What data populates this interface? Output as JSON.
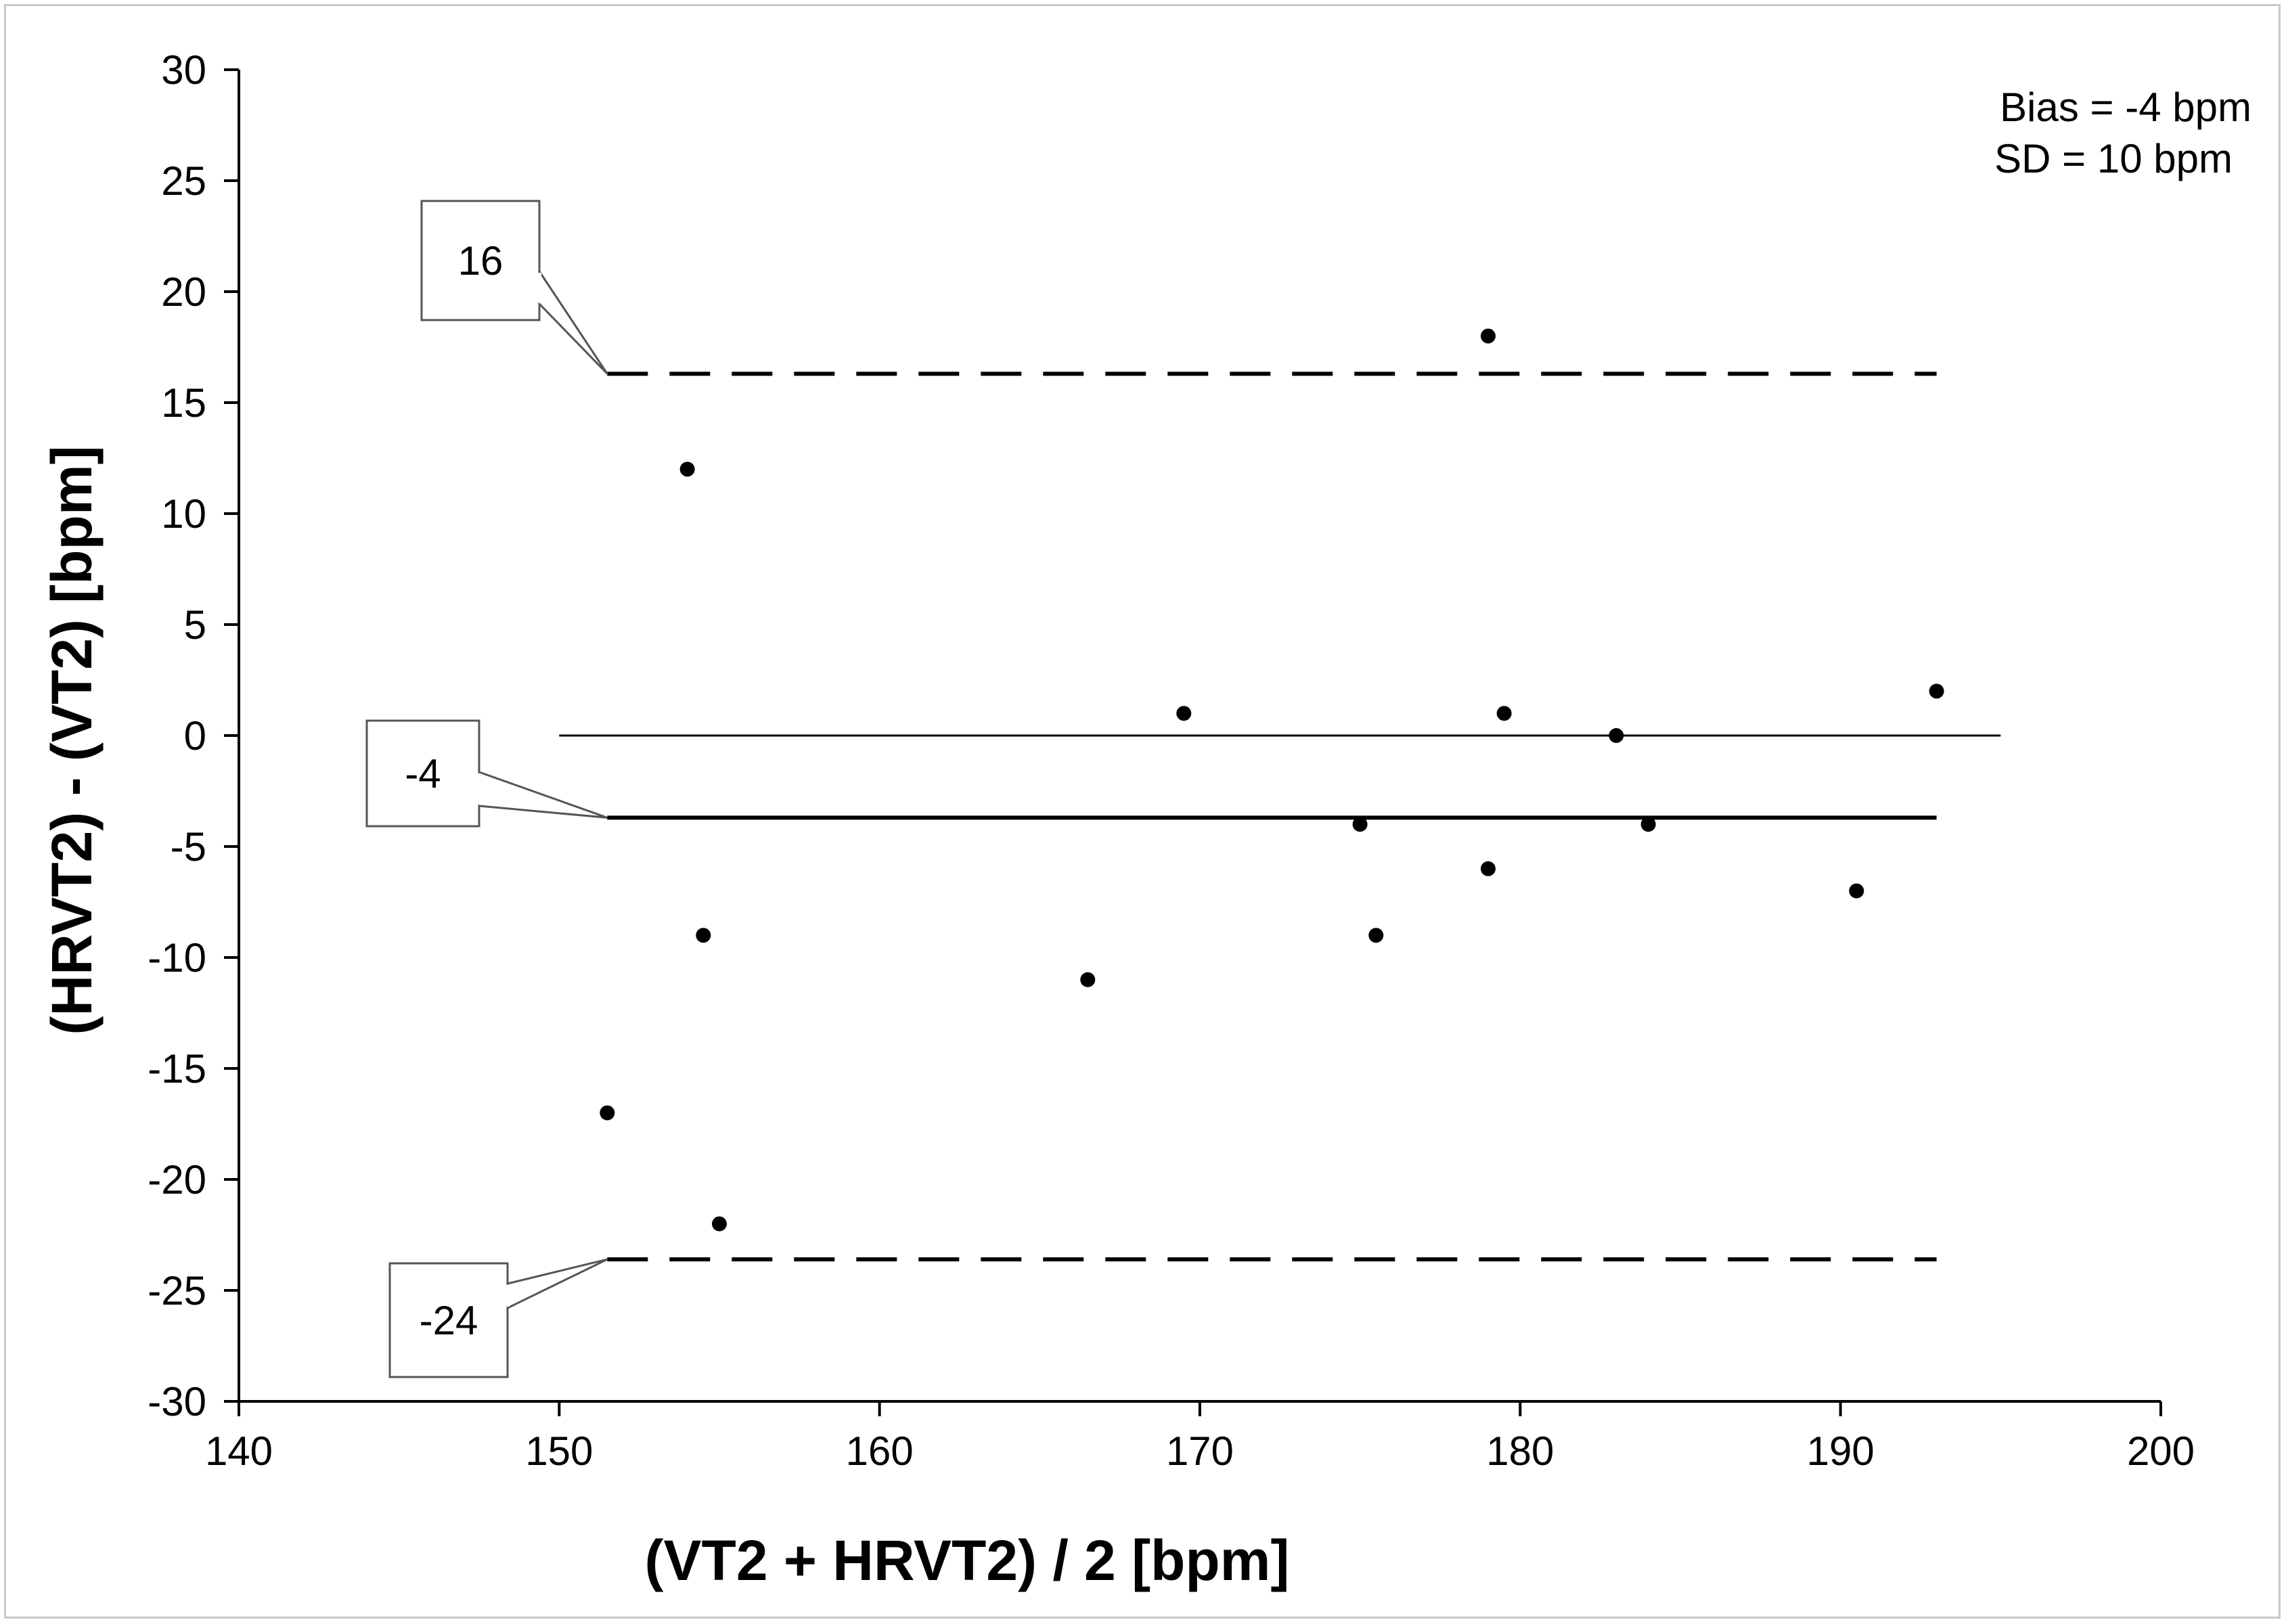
{
  "chart_data": {
    "type": "scatter",
    "title": "",
    "xlabel": "(VT2 + HRVT2) / 2 [bpm]",
    "ylabel": "(HRVT2) - (VT2) [bpm]",
    "xlim": [
      140,
      200
    ],
    "ylim": [
      -30,
      30
    ],
    "xticks": [
      140,
      150,
      160,
      170,
      180,
      190,
      200
    ],
    "yticks": [
      30,
      25,
      20,
      15,
      10,
      5,
      0,
      -5,
      -10,
      -15,
      -20,
      -25,
      -30
    ],
    "grid": false,
    "points": [
      {
        "x": 151.5,
        "y": -17
      },
      {
        "x": 154.0,
        "y": 12
      },
      {
        "x": 154.5,
        "y": -9
      },
      {
        "x": 155.0,
        "y": -22
      },
      {
        "x": 166.5,
        "y": -11
      },
      {
        "x": 169.5,
        "y": 1
      },
      {
        "x": 175.0,
        "y": -4
      },
      {
        "x": 175.5,
        "y": -9
      },
      {
        "x": 179.0,
        "y": 18
      },
      {
        "x": 179.0,
        "y": -6
      },
      {
        "x": 179.5,
        "y": 1
      },
      {
        "x": 183.0,
        "y": 0
      },
      {
        "x": 184.0,
        "y": -4
      },
      {
        "x": 190.5,
        "y": -7
      },
      {
        "x": 193.0,
        "y": 2
      }
    ],
    "reference_lines": [
      {
        "name": "zero",
        "y": 0,
        "x_range": [
          150,
          195
        ],
        "style": "solid-thin"
      },
      {
        "name": "bias",
        "y": -3.7,
        "x_range": [
          151.5,
          193
        ],
        "style": "solid-thick",
        "label": "-4"
      },
      {
        "name": "upper-loa",
        "y": 16.3,
        "x_range": [
          151.5,
          193
        ],
        "style": "dashed",
        "label": "16"
      },
      {
        "name": "lower-loa",
        "y": -23.6,
        "x_range": [
          151.5,
          193
        ],
        "style": "dashed",
        "label": "-24"
      }
    ],
    "annotations": {
      "bias_text": "Bias = -4 bpm",
      "sd_text": "SD = 10 bpm"
    }
  }
}
